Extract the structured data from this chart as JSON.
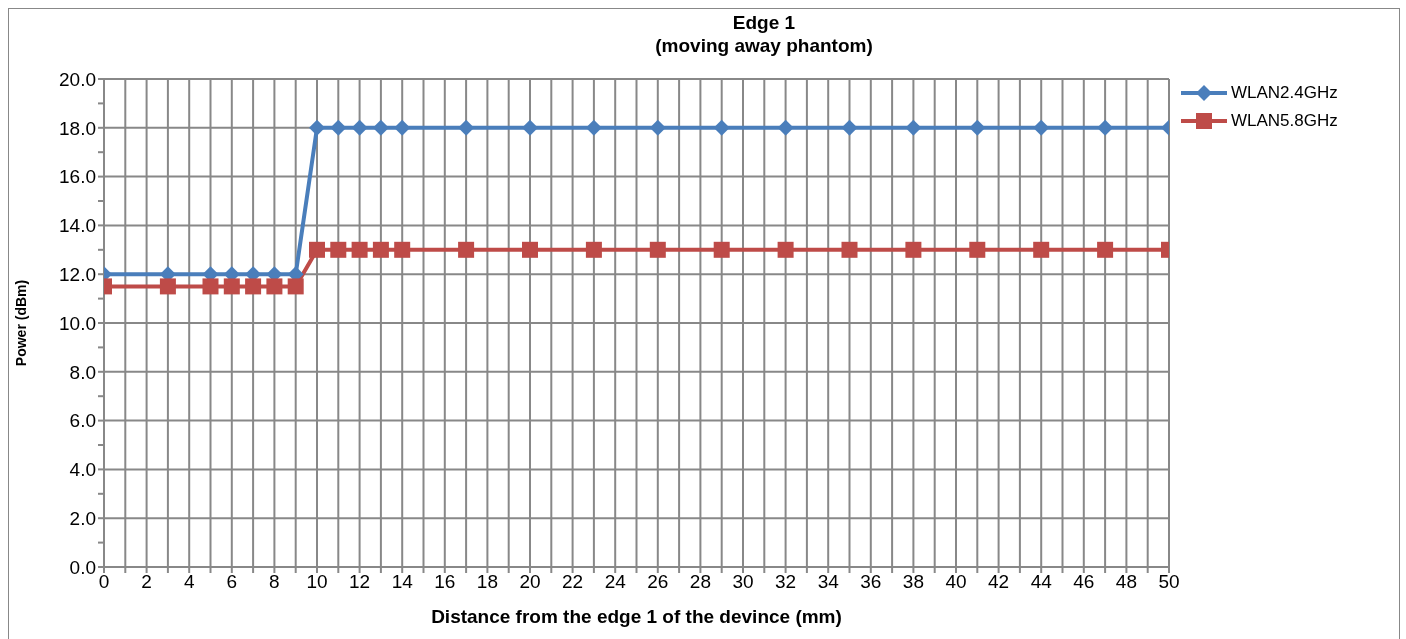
{
  "chart_data": {
    "type": "line",
    "title": "Edge 1\n(moving away phantom)",
    "xlabel": "Distance from the edge 1 of the devince (mm)",
    "ylabel": "Power (dBm)",
    "x": [
      0,
      3,
      5,
      6,
      7,
      8,
      9,
      10,
      11,
      12,
      13,
      14,
      17,
      20,
      23,
      26,
      29,
      32,
      35,
      38,
      41,
      44,
      47,
      50
    ],
    "series": [
      {
        "name": "WLAN2.4GHz",
        "color": "#4a7ebb",
        "marker": "diamond",
        "values": [
          12,
          12,
          12,
          12,
          12,
          12,
          12,
          18,
          18,
          18,
          18,
          18,
          18,
          18,
          18,
          18,
          18,
          18,
          18,
          18,
          18,
          18,
          18,
          18
        ]
      },
      {
        "name": "WLAN5.8GHz",
        "color": "#be4b48",
        "marker": "square",
        "values": [
          11.5,
          11.5,
          11.5,
          11.5,
          11.5,
          11.5,
          11.5,
          13,
          13,
          13,
          13,
          13,
          13,
          13,
          13,
          13,
          13,
          13,
          13,
          13,
          13,
          13,
          13,
          13
        ]
      }
    ],
    "xlim": [
      0,
      50
    ],
    "xticks": [
      0,
      {
        "value": 1,
        "label": null
      },
      2,
      {
        "value": 3,
        "label": null
      },
      4,
      {
        "value": 5,
        "label": null
      },
      6,
      {
        "value": 7,
        "label": null
      },
      8,
      {
        "value": 9,
        "label": null
      },
      10,
      {
        "value": 11,
        "label": null
      },
      12,
      {
        "value": 13,
        "label": null
      },
      14,
      {
        "value": 15,
        "label": null
      },
      16,
      {
        "value": 17,
        "label": null
      },
      18,
      {
        "value": 19,
        "label": null
      },
      20,
      {
        "value": 21,
        "label": null
      },
      22,
      {
        "value": 23,
        "label": null
      },
      24,
      {
        "value": 25,
        "label": null
      },
      26,
      {
        "value": 27,
        "label": null
      },
      28,
      {
        "value": 29,
        "label": null
      },
      30,
      {
        "value": 31,
        "label": null
      },
      32,
      {
        "value": 33,
        "label": null
      },
      34,
      {
        "value": 35,
        "label": null
      },
      36,
      {
        "value": 37,
        "label": null
      },
      38,
      {
        "value": 39,
        "label": null
      },
      40,
      {
        "value": 41,
        "label": null
      },
      42,
      {
        "value": 43,
        "label": null
      },
      44,
      {
        "value": 45,
        "label": null
      },
      46,
      {
        "value": 47,
        "label": null
      },
      48,
      {
        "value": 49,
        "label": null
      },
      50
    ],
    "ylim": [
      0,
      20
    ],
    "yticks": [
      {
        "value": 0,
        "label": "0.0"
      },
      {
        "value": 1,
        "label": null
      },
      {
        "value": 2,
        "label": "2.0"
      },
      {
        "value": 3,
        "label": null
      },
      {
        "value": 4,
        "label": "4.0"
      },
      {
        "value": 5,
        "label": null
      },
      {
        "value": 6,
        "label": "6.0"
      },
      {
        "value": 7,
        "label": null
      },
      {
        "value": 8,
        "label": "8.0"
      },
      {
        "value": 9,
        "label": null
      },
      {
        "value": 10,
        "label": "10.0"
      },
      {
        "value": 11,
        "label": null
      },
      {
        "value": 12,
        "label": "12.0"
      },
      {
        "value": 13,
        "label": null
      },
      {
        "value": 14,
        "label": "14.0"
      },
      {
        "value": 15,
        "label": null
      },
      {
        "value": 16,
        "label": "16.0"
      },
      {
        "value": 17,
        "label": null
      },
      {
        "value": 18,
        "label": "18.0"
      },
      {
        "value": 19,
        "label": null
      },
      {
        "value": 20,
        "label": "20.0"
      }
    ],
    "grid": true,
    "legend": "top right",
    "line_style": "solid"
  }
}
